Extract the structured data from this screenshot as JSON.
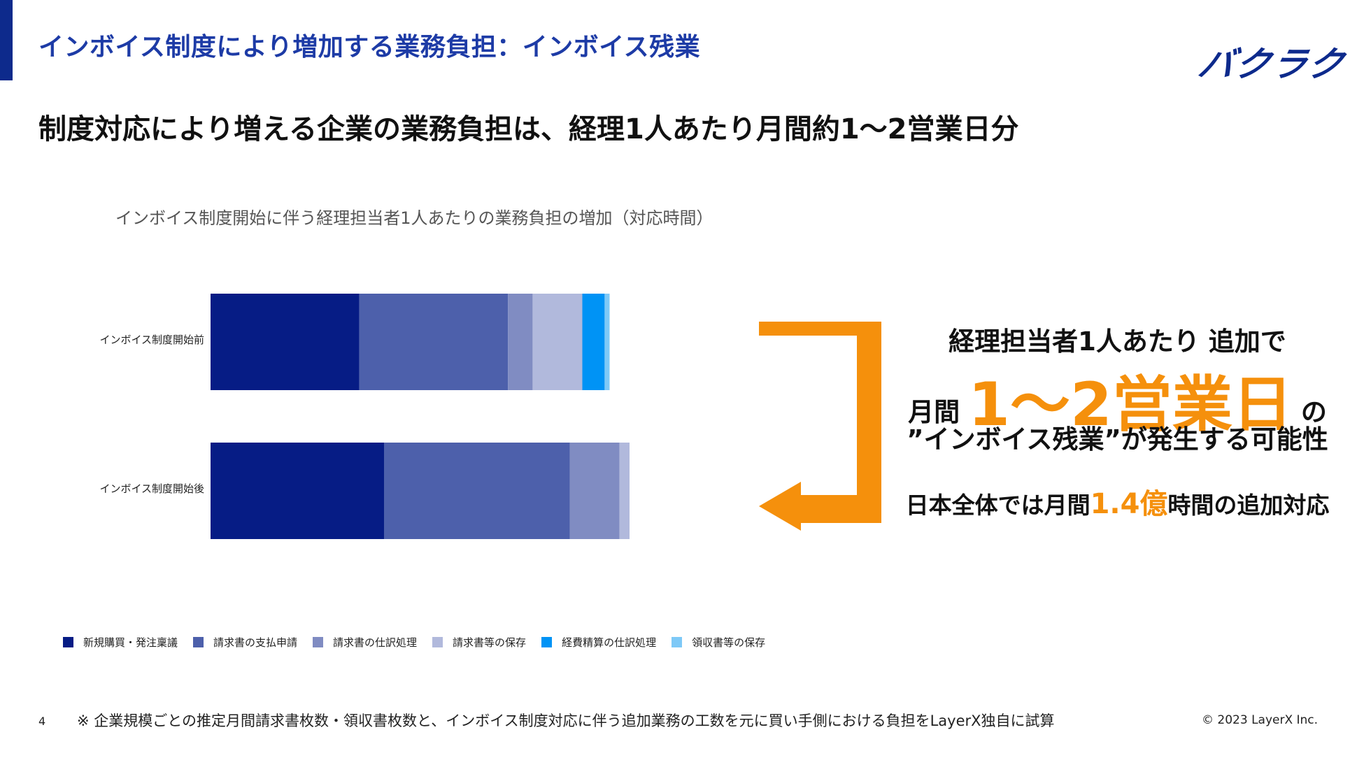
{
  "header": {
    "title": "インボイス制度により増加する業務負担：インボイス残業",
    "logo_text": "バクラク"
  },
  "headline": "制度対応により増える企業の業務負担は、経理1人あたり月間約1～2営業日分",
  "callout": {
    "line1": "経理担当者1人あたり 追加で",
    "line2_prefix": "月間",
    "line2_big": "1～2営業日",
    "line2_suffix": "の",
    "line3": "”インボイス残業”が発生する可能性",
    "line4_prefix": "日本全体では月間",
    "line4_num": "1.4億",
    "line4_suffix": "時間の追加対応",
    "accent_color": "#f5900c"
  },
  "footer": {
    "page_number": "4",
    "note": "※ 企業規模ごとの推定月間請求書枚数・領収書枚数と、インボイス制度対応に伴う追加業務の工数を元に買い手側における負担をLayerX独自に試算",
    "copyright": "© 2023 LayerX Inc."
  },
  "chart_data": {
    "type": "bar",
    "orientation": "horizontal",
    "stacked": true,
    "title": "インボイス制度開始に伴う経理担当者1人あたりの業務負担の増加（対応時間）",
    "categories": [
      "インボイス制度開始前",
      "インボイス制度開始後"
    ],
    "series": [
      {
        "name": "新規購買・発注稟議",
        "values": [
          30,
          35
        ],
        "color": "#061c85"
      },
      {
        "name": "請求書の支払申請",
        "values": [
          30,
          37.5
        ],
        "color": "#4d60ab"
      },
      {
        "name": "請求書の仕訳処理",
        "values": [
          5,
          10
        ],
        "color": "#808cc2"
      },
      {
        "name": "請求書等の保存",
        "values": [
          10,
          10
        ],
        "color": "#b1b9dc"
      },
      {
        "name": "経費精算の仕訳処理",
        "values": [
          4.5,
          6
        ],
        "color": "#0093f5"
      },
      {
        "name": "領収書等の保存",
        "values": [
          1,
          1.2
        ],
        "color": "#7ec9f7"
      }
    ],
    "xlim": [
      0,
      115
    ],
    "axis_visible": false,
    "grid": false,
    "legend_position": "bottom"
  }
}
